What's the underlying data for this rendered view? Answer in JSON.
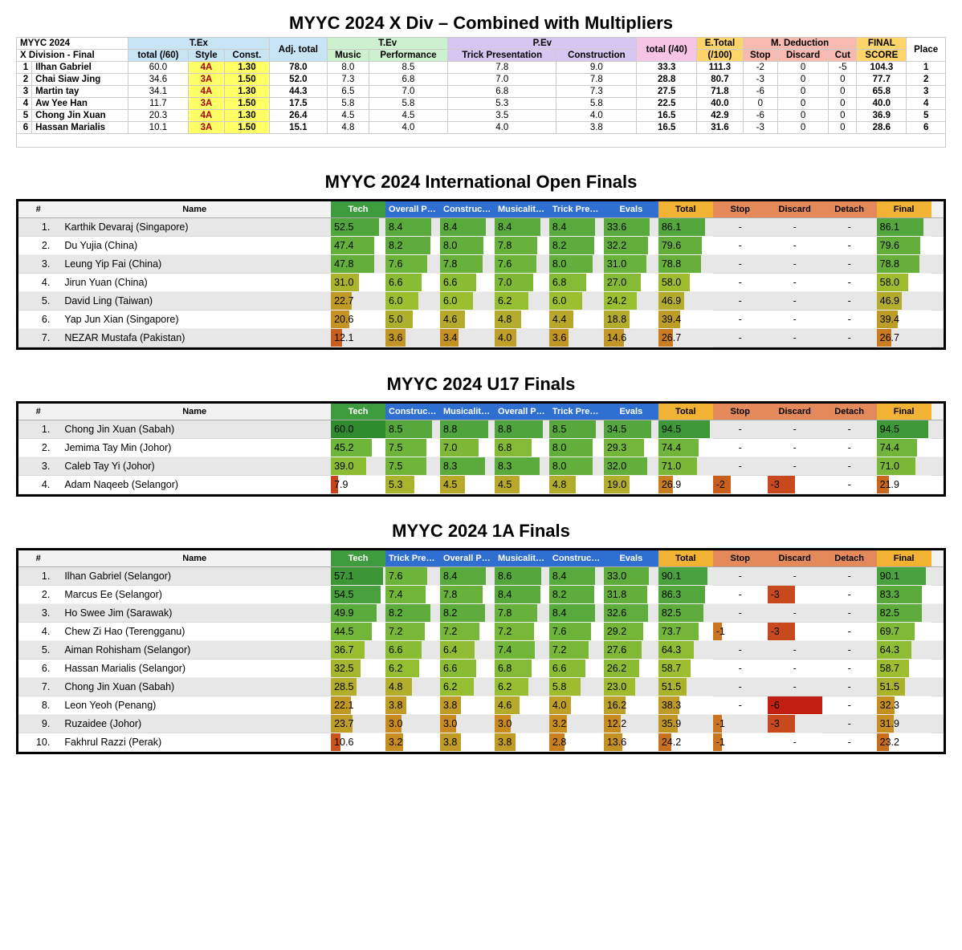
{
  "palette": {
    "tex": "#c7e4f5",
    "tev": "#cdf0ce",
    "pev": "#d8c6f2",
    "pink": "#f6c5e6",
    "etot": "#ffd56b",
    "mded": "#f7b9b0",
    "finalhdr": "#ffd56b",
    "yellow_hl": "#ffff66",
    "h_tech": "#3e9b3e",
    "h_blue": "#2f6fd1",
    "h_orange_hdr": "#f2b233",
    "h_pen_hdr": "#e48a5a",
    "row_odd": "#e7e7e7",
    "row_even": "#ffffff"
  },
  "bar_colors": {
    "stops": [
      {
        "at": 0.0,
        "color": "#b22217"
      },
      {
        "at": 0.15,
        "color": "#c9491e"
      },
      {
        "at": 0.3,
        "color": "#c98a20"
      },
      {
        "at": 0.45,
        "color": "#b8a92b"
      },
      {
        "at": 0.6,
        "color": "#9bbf2f"
      },
      {
        "at": 0.75,
        "color": "#6fb53a"
      },
      {
        "at": 0.9,
        "color": "#4aa23e"
      },
      {
        "at": 1.0,
        "color": "#2e8b2e"
      }
    ],
    "penalty_stops": [
      {
        "at": 0.0,
        "color": "#c98a20"
      },
      {
        "at": 0.5,
        "color": "#c9491e"
      },
      {
        "at": 1.0,
        "color": "#c01f12"
      }
    ]
  },
  "titles": {
    "main": "MYYC 2024 X Div – Combined with Multipliers",
    "intl": "MYYC 2024 International Open Finals",
    "u17": "MYYC 2024 U17 Finals",
    "a1": "MYYC 2024 1A Finals"
  },
  "xdiv": {
    "meta_line1": "MYYC 2024",
    "meta_line2": "X Division - Final",
    "group_headers": {
      "tex": "T.Ex",
      "tev": "T.Ev",
      "pev": "P.Ev",
      "etotal": "E.Total",
      "mded": "M. Deduction",
      "final": "FINAL"
    },
    "sub_headers": {
      "total60": "total (/60)",
      "style": "Style",
      "const": "Const.",
      "adjtotal": "Adj.\ntotal",
      "music": "Music",
      "perf": "Performance",
      "trickpres": "Trick\nPresentation",
      "construction": "Construction",
      "total40": "total (/40)",
      "etotal100": "(/100)",
      "stop": "Stop",
      "discard": "Discard",
      "cut": "Cut",
      "score": "SCORE",
      "place": "Place"
    },
    "rows": [
      {
        "n": 1,
        "name": "Ilhan Gabriel",
        "t60": "60.0",
        "style": "4A",
        "const": "1.30",
        "adj": "78.0",
        "music": "8.0",
        "perf": "8.5",
        "trick": "7.8",
        "constr": "9.0",
        "t40": "33.3",
        "etot": "111.3",
        "stop": "-2",
        "disc": "0",
        "cut": "-5",
        "final": "104.3",
        "place": "1"
      },
      {
        "n": 2,
        "name": "Chai Siaw Jing",
        "t60": "34.6",
        "style": "3A",
        "const": "1.50",
        "adj": "52.0",
        "music": "7.3",
        "perf": "6.8",
        "trick": "7.0",
        "constr": "7.8",
        "t40": "28.8",
        "etot": "80.7",
        "stop": "-3",
        "disc": "0",
        "cut": "0",
        "final": "77.7",
        "place": "2"
      },
      {
        "n": 3,
        "name": "Martin tay",
        "t60": "34.1",
        "style": "4A",
        "const": "1.30",
        "adj": "44.3",
        "music": "6.5",
        "perf": "7.0",
        "trick": "6.8",
        "constr": "7.3",
        "t40": "27.5",
        "etot": "71.8",
        "stop": "-6",
        "disc": "0",
        "cut": "0",
        "final": "65.8",
        "place": "3"
      },
      {
        "n": 4,
        "name": "Aw Yee Han",
        "t60": "11.7",
        "style": "3A",
        "const": "1.50",
        "adj": "17.5",
        "music": "5.8",
        "perf": "5.8",
        "trick": "5.3",
        "constr": "5.8",
        "t40": "22.5",
        "etot": "40.0",
        "stop": "0",
        "disc": "0",
        "cut": "0",
        "final": "40.0",
        "place": "4"
      },
      {
        "n": 5,
        "name": "Chong Jin Xuan",
        "t60": "20.3",
        "style": "4A",
        "const": "1.30",
        "adj": "26.4",
        "music": "4.5",
        "perf": "4.5",
        "trick": "3.5",
        "constr": "4.0",
        "t40": "16.5",
        "etot": "42.9",
        "stop": "-6",
        "disc": "0",
        "cut": "0",
        "final": "36.9",
        "place": "5"
      },
      {
        "n": 6,
        "name": "Hassan Marialis",
        "t60": "10.1",
        "style": "3A",
        "const": "1.50",
        "adj": "15.1",
        "music": "4.8",
        "perf": "4.0",
        "trick": "4.0",
        "constr": "3.8",
        "t40": "16.5",
        "etot": "31.6",
        "stop": "-3",
        "disc": "0",
        "cut": "0",
        "final": "28.6",
        "place": "6"
      }
    ]
  },
  "score_headers": {
    "rank": "#",
    "name": "Name",
    "tech": "Tech",
    "overall": "Overall Perfo…",
    "construction": "Construction",
    "musicality": "Musicality & …",
    "trickpres": "Trick Presen…",
    "trickpres2": "Trick Present…",
    "evals": "Evals",
    "total": "Total",
    "stop": "Stop",
    "discard": "Discard",
    "detach": "Detach",
    "final": "Final"
  },
  "score_scales": {
    "tech_max": 60,
    "sub_max": 10,
    "evals_max": 40,
    "total_max": 100,
    "final_max": 100,
    "penalty_max": 6
  },
  "intl": {
    "col_order": [
      "overall",
      "construction",
      "musicality",
      "trickpres"
    ],
    "rows": [
      {
        "rank": "1.",
        "name": "Karthik Devaraj (Singapore)",
        "tech": 52.5,
        "overall": 8.4,
        "construction": 8.4,
        "musicality": 8.4,
        "trickpres": 8.4,
        "evals": 33.6,
        "total": 86.1,
        "stop": null,
        "discard": null,
        "detach": null,
        "final": 86.1
      },
      {
        "rank": "2.",
        "name": "Du Yujia (China)",
        "tech": 47.4,
        "overall": 8.2,
        "construction": 8.0,
        "musicality": 7.8,
        "trickpres": 8.2,
        "evals": 32.2,
        "total": 79.6,
        "stop": null,
        "discard": null,
        "detach": null,
        "final": 79.6
      },
      {
        "rank": "3.",
        "name": "Leung Yip Fai (China)",
        "tech": 47.8,
        "overall": 7.6,
        "construction": 7.8,
        "musicality": 7.6,
        "trickpres": 8.0,
        "evals": 31.0,
        "total": 78.8,
        "stop": null,
        "discard": null,
        "detach": null,
        "final": 78.8
      },
      {
        "rank": "4.",
        "name": "Jirun Yuan (China)",
        "tech": 31.0,
        "overall": 6.6,
        "construction": 6.6,
        "musicality": 7.0,
        "trickpres": 6.8,
        "evals": 27.0,
        "total": 58.0,
        "stop": null,
        "discard": null,
        "detach": null,
        "final": 58.0
      },
      {
        "rank": "5.",
        "name": "David Ling (Taiwan)",
        "tech": 22.7,
        "overall": 6.0,
        "construction": 6.0,
        "musicality": 6.2,
        "trickpres": 6.0,
        "evals": 24.2,
        "total": 46.9,
        "stop": null,
        "discard": null,
        "detach": null,
        "final": 46.9
      },
      {
        "rank": "6.",
        "name": "Yap Jun Xian (Singapore)",
        "tech": 20.6,
        "overall": 5.0,
        "construction": 4.6,
        "musicality": 4.8,
        "trickpres": 4.4,
        "evals": 18.8,
        "total": 39.4,
        "stop": null,
        "discard": null,
        "detach": null,
        "final": 39.4
      },
      {
        "rank": "7.",
        "name": "NEZAR Mustafa (Pakistan)",
        "tech": 12.1,
        "overall": 3.6,
        "construction": 3.4,
        "musicality": 4.0,
        "trickpres": 3.6,
        "evals": 14.6,
        "total": 26.7,
        "stop": null,
        "discard": null,
        "detach": null,
        "final": 26.7
      }
    ]
  },
  "u17": {
    "col_order": [
      "construction",
      "musicality",
      "overall",
      "trickpres"
    ],
    "rows": [
      {
        "rank": "1.",
        "name": "Chong Jin Xuan (Sabah)",
        "tech": 60.0,
        "construction": 8.5,
        "musicality": 8.8,
        "overall": 8.8,
        "trickpres": 8.5,
        "evals": 34.5,
        "total": 94.5,
        "stop": null,
        "discard": null,
        "detach": null,
        "final": 94.5
      },
      {
        "rank": "2.",
        "name": "Jemima Tay Min (Johor)",
        "tech": 45.2,
        "construction": 7.5,
        "musicality": 7.0,
        "overall": 6.8,
        "trickpres": 8.0,
        "evals": 29.3,
        "total": 74.4,
        "stop": null,
        "discard": null,
        "detach": null,
        "final": 74.4
      },
      {
        "rank": "3.",
        "name": "Caleb Tay Yi (Johor)",
        "tech": 39.0,
        "construction": 7.5,
        "musicality": 8.3,
        "overall": 8.3,
        "trickpres": 8.0,
        "evals": 32.0,
        "total": 71.0,
        "stop": null,
        "discard": null,
        "detach": null,
        "final": 71.0
      },
      {
        "rank": "4.",
        "name": "Adam Naqeeb (Selangor)",
        "tech": 7.9,
        "construction": 5.3,
        "musicality": 4.5,
        "overall": 4.5,
        "trickpres": 4.8,
        "evals": 19.0,
        "total": 26.9,
        "stop": -2,
        "discard": -3,
        "detach": null,
        "final": 21.9
      }
    ]
  },
  "a1": {
    "col_order": [
      "trickpres",
      "overall",
      "musicality",
      "construction"
    ],
    "rows": [
      {
        "rank": "1.",
        "name": "Ilhan Gabriel (Selangor)",
        "tech": 57.1,
        "trickpres": 7.6,
        "overall": 8.4,
        "musicality": 8.6,
        "construction": 8.4,
        "evals": 33.0,
        "total": 90.1,
        "stop": null,
        "discard": null,
        "detach": null,
        "final": 90.1
      },
      {
        "rank": "2.",
        "name": "Marcus Ee (Selangor)",
        "tech": 54.5,
        "trickpres": 7.4,
        "overall": 7.8,
        "musicality": 8.4,
        "construction": 8.2,
        "evals": 31.8,
        "total": 86.3,
        "stop": null,
        "discard": -3,
        "detach": null,
        "final": 83.3
      },
      {
        "rank": "3.",
        "name": "Ho Swee Jim (Sarawak)",
        "tech": 49.9,
        "trickpres": 8.2,
        "overall": 8.2,
        "musicality": 7.8,
        "construction": 8.4,
        "evals": 32.6,
        "total": 82.5,
        "stop": null,
        "discard": null,
        "detach": null,
        "final": 82.5
      },
      {
        "rank": "4.",
        "name": "Chew Zi Hao (Terengganu)",
        "tech": 44.5,
        "trickpres": 7.2,
        "overall": 7.2,
        "musicality": 7.2,
        "construction": 7.6,
        "evals": 29.2,
        "total": 73.7,
        "stop": -1,
        "discard": -3,
        "detach": null,
        "final": 69.7
      },
      {
        "rank": "5.",
        "name": "Aiman Rohisham (Selangor)",
        "tech": 36.7,
        "trickpres": 6.6,
        "overall": 6.4,
        "musicality": 7.4,
        "construction": 7.2,
        "evals": 27.6,
        "total": 64.3,
        "stop": null,
        "discard": null,
        "detach": null,
        "final": 64.3
      },
      {
        "rank": "6.",
        "name": "Hassan Marialis (Selangor)",
        "tech": 32.5,
        "trickpres": 6.2,
        "overall": 6.6,
        "musicality": 6.8,
        "construction": 6.6,
        "evals": 26.2,
        "total": 58.7,
        "stop": null,
        "discard": null,
        "detach": null,
        "final": 58.7
      },
      {
        "rank": "7.",
        "name": "Chong Jin Xuan (Sabah)",
        "tech": 28.5,
        "trickpres": 4.8,
        "overall": 6.2,
        "musicality": 6.2,
        "construction": 5.8,
        "evals": 23.0,
        "total": 51.5,
        "stop": null,
        "discard": null,
        "detach": null,
        "final": 51.5
      },
      {
        "rank": "8.",
        "name": "Leon Yeoh (Penang)",
        "tech": 22.1,
        "trickpres": 3.8,
        "overall": 3.8,
        "musicality": 4.6,
        "construction": 4.0,
        "evals": 16.2,
        "total": 38.3,
        "stop": null,
        "discard": -6,
        "detach": null,
        "final": 32.3
      },
      {
        "rank": "9.",
        "name": "Ruzaidee (Johor)",
        "tech": 23.7,
        "trickpres": 3.0,
        "overall": 3.0,
        "musicality": 3.0,
        "construction": 3.2,
        "evals": 12.2,
        "total": 35.9,
        "stop": -1,
        "discard": -3,
        "detach": null,
        "final": 31.9
      },
      {
        "rank": "10.",
        "name": "Fakhrul Razzi (Perak)",
        "tech": 10.6,
        "trickpres": 3.2,
        "overall": 3.8,
        "musicality": 3.8,
        "construction": 2.8,
        "evals": 13.6,
        "total": 24.2,
        "stop": -1,
        "discard": null,
        "detach": null,
        "final": 23.2
      }
    ]
  }
}
